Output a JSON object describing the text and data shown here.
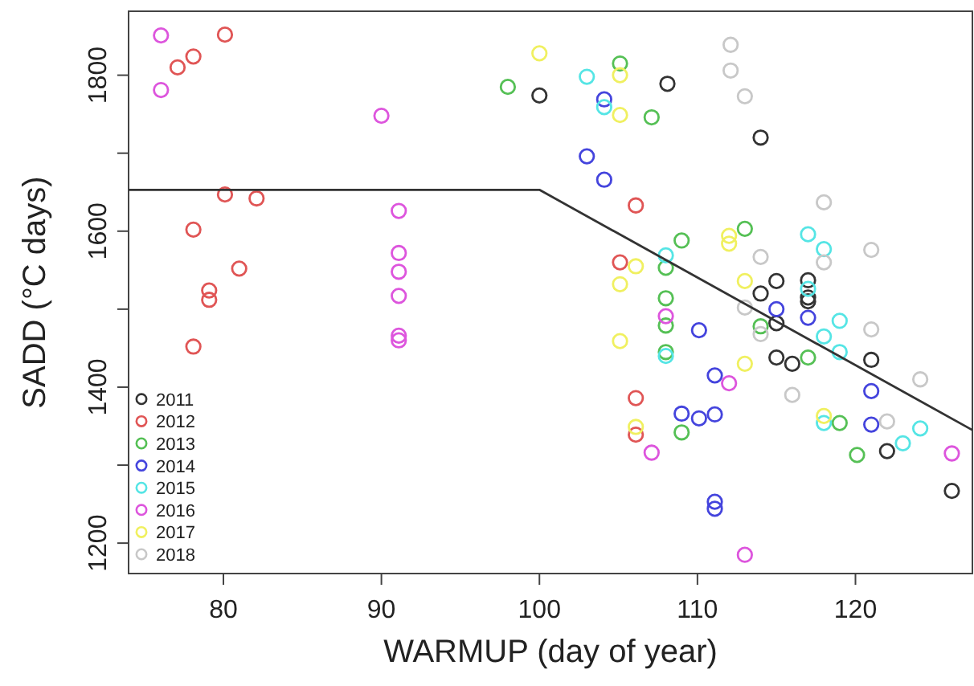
{
  "chart_data": {
    "type": "scatter",
    "xlabel": "WARMUP (day of year)",
    "ylabel": "SADD (°C days)",
    "xlim": [
      74,
      127.4
    ],
    "ylim": [
      1161,
      1882
    ],
    "xticks": [
      80,
      90,
      100,
      110,
      120
    ],
    "yticks": [
      1200,
      {
        "value": 1300,
        "label": null
      },
      1400,
      {
        "value": 1500,
        "label": null
      },
      1600,
      {
        "value": 1700,
        "label": null
      },
      1800
    ],
    "grid": false,
    "legend": "bottom left",
    "marker": "circle",
    "series": [
      {
        "name": "2011",
        "color": "#333333",
        "x": [
          100,
          108.1,
          114,
          115,
          117,
          114,
          117,
          117,
          115,
          115,
          116,
          121,
          122,
          126.1
        ],
        "values": [
          1774,
          1789,
          1720,
          1536,
          1537,
          1520,
          1515,
          1510,
          1482,
          1438,
          1430,
          1435,
          1318,
          1267
        ]
      },
      {
        "name": "2012",
        "color": "#e05555",
        "x": [
          80.1,
          78.1,
          77.1,
          80.1,
          82.1,
          78.1,
          81,
          79.1,
          79.1,
          78.1,
          106.1,
          105.1,
          106.1,
          106.1
        ],
        "values": [
          1852,
          1824,
          1810,
          1647,
          1642,
          1602,
          1552,
          1524,
          1512,
          1452,
          1633,
          1560,
          1386,
          1339
        ]
      },
      {
        "name": "2013",
        "color": "#55c055",
        "x": [
          98,
          105.1,
          107.1,
          109,
          113,
          108,
          108,
          108,
          108,
          114,
          117,
          109,
          119,
          120.1
        ],
        "values": [
          1785,
          1815,
          1746,
          1588,
          1603,
          1553,
          1514,
          1479,
          1445,
          1478,
          1438,
          1342,
          1354,
          1313
        ]
      },
      {
        "name": "2014",
        "color": "#4444dd",
        "x": [
          104.1,
          103,
          104.1,
          115,
          117,
          110.1,
          111.1,
          121,
          109,
          110.1,
          111.1,
          121,
          111.1,
          111.1
        ],
        "values": [
          1769,
          1696,
          1666,
          1500,
          1489,
          1473,
          1415,
          1395,
          1366,
          1360,
          1365,
          1352,
          1253,
          1244
        ]
      },
      {
        "name": "2015",
        "color": "#55e5e5",
        "x": [
          103,
          104.1,
          117,
          118,
          108,
          117,
          119,
          118,
          119,
          108,
          118,
          124.1,
          123
        ],
        "values": [
          1798,
          1759,
          1596,
          1577,
          1569,
          1526,
          1485,
          1465,
          1445,
          1440,
          1354,
          1347,
          1328
        ]
      },
      {
        "name": "2016",
        "color": "#dd55dd",
        "x": [
          76.05,
          76.05,
          90,
          91.1,
          91.1,
          91.1,
          91.1,
          91.1,
          91.1,
          108,
          112,
          107.1,
          126.1,
          113
        ],
        "values": [
          1851,
          1781,
          1748,
          1626,
          1572,
          1548,
          1517,
          1466,
          1460,
          1491,
          1405,
          1316,
          1315,
          1185
        ]
      },
      {
        "name": "2017",
        "color": "#f0f060",
        "x": [
          100,
          105.1,
          105.1,
          112,
          112,
          106.1,
          105.1,
          113,
          105.1,
          113,
          106.1,
          118
        ],
        "values": [
          1828,
          1800,
          1749,
          1594,
          1584,
          1555,
          1532,
          1536,
          1459,
          1430,
          1349,
          1363
        ]
      },
      {
        "name": "2018",
        "color": "#c8c8c8",
        "x": [
          112.1,
          112.1,
          113,
          118,
          121,
          114,
          118,
          113,
          114,
          121,
          116,
          124.1,
          122
        ],
        "values": [
          1839,
          1806,
          1773,
          1637,
          1576,
          1567,
          1560,
          1502,
          1468,
          1474,
          1390,
          1410,
          1356
        ]
      },
      {
        "type": "line",
        "marker": "none",
        "color": "#333333",
        "x": [
          74,
          100,
          127.4
        ],
        "values": [
          1653,
          1653,
          1345
        ]
      }
    ]
  }
}
